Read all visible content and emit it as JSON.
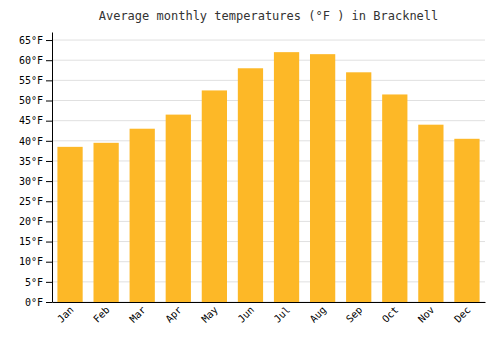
{
  "chart_data": {
    "type": "bar",
    "title": "Average monthly temperatures (°F ) in Bracknell",
    "categories": [
      "Jan",
      "Feb",
      "Mar",
      "Apr",
      "May",
      "Jun",
      "Jul",
      "Aug",
      "Sep",
      "Oct",
      "Nov",
      "Dec"
    ],
    "values": [
      38.5,
      39.5,
      43.0,
      46.5,
      52.5,
      58.0,
      62.0,
      61.5,
      57.0,
      51.5,
      44.0,
      40.5
    ],
    "color": "#FDB827",
    "ylim": [
      0,
      67
    ],
    "yticks": [
      {
        "value": 0,
        "label": "0°F"
      },
      {
        "value": 5,
        "label": "5°F"
      },
      {
        "value": 10,
        "label": "10°F"
      },
      {
        "value": 15,
        "label": "15°F"
      },
      {
        "value": 20,
        "label": "20°F"
      },
      {
        "value": 25,
        "label": "25°F"
      },
      {
        "value": 30,
        "label": "30°F"
      },
      {
        "value": 35,
        "label": "35°F"
      },
      {
        "value": 40,
        "label": "40°F"
      },
      {
        "value": 45,
        "label": "45°F"
      },
      {
        "value": 50,
        "label": "50°F"
      },
      {
        "value": 55,
        "label": "55°F"
      },
      {
        "value": 60,
        "label": "60°F"
      },
      {
        "value": 65,
        "label": "65°F"
      }
    ],
    "grid": true
  }
}
